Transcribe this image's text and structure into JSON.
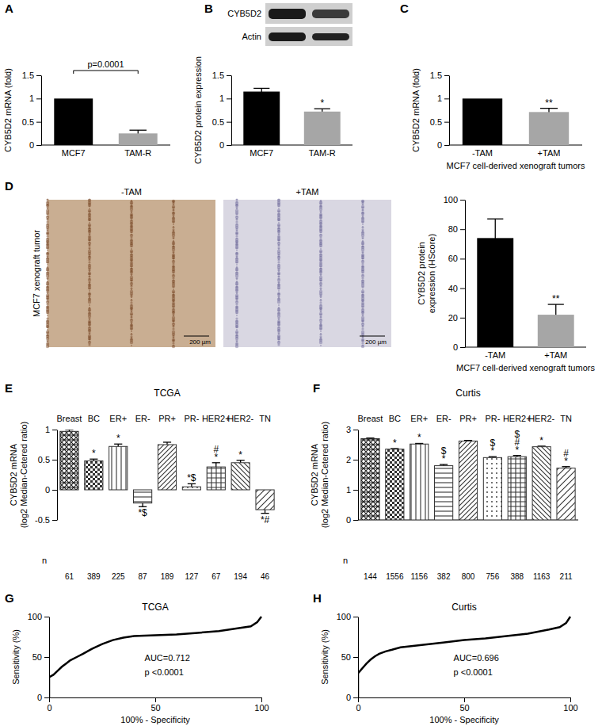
{
  "chart_data": [
    {
      "panel": "A",
      "type": "bar",
      "categories": [
        "MCF7",
        "TAM-R"
      ],
      "values": [
        1,
        0.25
      ],
      "errors": [
        null,
        0.07
      ],
      "colors": [
        "#000000",
        "#a6a6a6"
      ],
      "ylabel": [
        "CYB5D2 mRNA (fold)"
      ],
      "ylim": [
        0,
        1.5
      ],
      "yticks": [
        0,
        0.5,
        1,
        1.5
      ],
      "annotations": [
        {
          "text": "p=0.0001",
          "from": "MCF7",
          "to": "TAM-R"
        }
      ]
    },
    {
      "panel": "B",
      "type": "bar",
      "categories": [
        "MCF7",
        "TAM-R"
      ],
      "values": [
        1.15,
        0.72
      ],
      "errors": [
        0.07,
        0.06
      ],
      "colors": [
        "#000000",
        "#a6a6a6"
      ],
      "ylabel": [
        "CYB5D2 protein expression"
      ],
      "ylim": [
        0,
        1.5
      ],
      "yticks": [
        0,
        0.5,
        1,
        1.5
      ],
      "annotations": [
        {
          "category": "TAM-R",
          "lines": [
            "*"
          ]
        }
      ],
      "blot_labels": [
        "CYB5D2",
        "Actin"
      ]
    },
    {
      "panel": "C",
      "type": "bar",
      "categories": [
        "-TAM",
        "+TAM"
      ],
      "values": [
        1,
        0.71
      ],
      "errors": [
        null,
        0.08
      ],
      "colors": [
        "#000000",
        "#a6a6a6"
      ],
      "ylabel": [
        "CYB5D2 mRNA (fold)"
      ],
      "xlabel": "MCF7 cell-derived xenograft tumors",
      "ylim": [
        0,
        1.5
      ],
      "yticks": [
        0,
        0.5,
        1,
        1.5
      ],
      "annotations": [
        {
          "category": "+TAM",
          "lines": [
            "**"
          ]
        }
      ]
    },
    {
      "panel": "D",
      "type": "bar",
      "categories": [
        "-TAM",
        "+TAM"
      ],
      "values": [
        74,
        22
      ],
      "errors": [
        13,
        7
      ],
      "colors": [
        "#000000",
        "#a6a6a6"
      ],
      "ylabel": [
        "CYB5D2 protein",
        "expression (HScore)"
      ],
      "xlabel": "MCF7 cell-derived xenograft tumors",
      "ylim": [
        0,
        100
      ],
      "yticks": [
        0,
        20,
        40,
        60,
        80,
        100
      ],
      "annotations": [
        {
          "category": "+TAM",
          "lines": [
            "**"
          ]
        }
      ],
      "images": {
        "titles": [
          "-TAM",
          "+TAM"
        ],
        "side_label": "MCF7 xenograft tumor",
        "scale_bars": [
          "200 µm",
          "200 µm"
        ]
      }
    },
    {
      "panel": "E",
      "type": "bar",
      "title": "TCGA",
      "categories": [
        "Breast",
        "BC",
        "ER+",
        "ER-",
        "PR+",
        "PR-",
        "HER2+",
        "HER2-",
        "TN"
      ],
      "values": [
        0.97,
        0.48,
        0.72,
        -0.22,
        0.75,
        0.05,
        0.38,
        0.45,
        -0.33
      ],
      "errors": [
        0.03,
        0.03,
        0.04,
        0.06,
        0.04,
        0.05,
        0.07,
        0.04,
        0.06
      ],
      "colors": [
        "#222222",
        "#333333",
        "#333333",
        "#333333",
        "#333333",
        "#333333",
        "#333333",
        "#333333",
        "#333333"
      ],
      "ylabel": [
        "CYB5D2 mRNA",
        "(log2 Median-Cetered ratio)"
      ],
      "ylim": [
        -0.5,
        1
      ],
      "yticks": [
        -0.5,
        0,
        0.5,
        1
      ],
      "annotations": [
        {
          "category": "BC",
          "lines": [
            "*"
          ]
        },
        {
          "category": "ER+",
          "lines": [
            "*"
          ]
        },
        {
          "category": "ER-",
          "lines": [
            "*$"
          ]
        },
        {
          "category": "PR-",
          "lines": [
            "*$"
          ]
        },
        {
          "category": "HER2+",
          "lines": [
            "#",
            "*"
          ]
        },
        {
          "category": "HER2-",
          "lines": [
            "*"
          ]
        },
        {
          "category": "TN",
          "lines": [
            "*#"
          ]
        }
      ],
      "n": {
        "label": "n",
        "values": [
          61,
          389,
          225,
          87,
          189,
          127,
          67,
          194,
          46
        ]
      }
    },
    {
      "panel": "F",
      "type": "bar",
      "title": "Curtis",
      "categories": [
        "Breast",
        "BC",
        "ER+",
        "ER-",
        "PR+",
        "PR-",
        "HER2+",
        "HER2-",
        "TN"
      ],
      "values": [
        2.7,
        2.35,
        2.52,
        1.8,
        2.62,
        2.07,
        2.1,
        2.43,
        1.72
      ],
      "errors": [
        0.02,
        0.02,
        0.02,
        0.04,
        0.02,
        0.03,
        0.04,
        0.02,
        0.05
      ],
      "colors": [
        "#222222",
        "#333333",
        "#333333",
        "#333333",
        "#333333",
        "#333333",
        "#333333",
        "#333333",
        "#333333"
      ],
      "ylabel": [
        "CYB5D2 mRNA",
        "(log2 Median-Cetered ratio)"
      ],
      "ylim": [
        0,
        3
      ],
      "yticks": [
        0,
        1,
        2,
        3
      ],
      "annotations": [
        {
          "category": "BC",
          "lines": [
            "*"
          ]
        },
        {
          "category": "ER+",
          "lines": [
            "*"
          ]
        },
        {
          "category": "ER-",
          "lines": [
            "$",
            "*"
          ]
        },
        {
          "category": "PR-",
          "lines": [
            "$",
            "*"
          ]
        },
        {
          "category": "HER2+",
          "lines": [
            "$",
            "#",
            "*"
          ]
        },
        {
          "category": "HER2-",
          "lines": [
            "*"
          ]
        },
        {
          "category": "TN",
          "lines": [
            "#",
            "*"
          ]
        }
      ],
      "n": {
        "label": "n",
        "values": [
          144,
          1556,
          1156,
          382,
          800,
          756,
          388,
          1163,
          211
        ]
      }
    },
    {
      "panel": "G",
      "type": "line",
      "title": "TCGA",
      "x": [
        0,
        0,
        2,
        4,
        6,
        8,
        10,
        13,
        16,
        20,
        25,
        30,
        35,
        40,
        50,
        60,
        70,
        80,
        90,
        95,
        98,
        100
      ],
      "y": [
        0,
        25,
        28,
        33,
        38,
        42,
        46,
        50,
        54,
        60,
        66,
        71,
        74,
        76,
        77,
        78,
        80,
        82,
        86,
        88,
        93,
        100
      ],
      "color": "#000000",
      "xlabel": "100% - Specificity",
      "ylabel": [
        "Sensitivity (%)"
      ],
      "xlim": [
        0,
        100
      ],
      "ylim": [
        0,
        100
      ],
      "xticks": [
        0,
        50,
        100
      ],
      "yticks": [
        0,
        50,
        100
      ],
      "annotations": [
        {
          "text": "AUC=0.712"
        },
        {
          "text": "p <0.0001"
        }
      ]
    },
    {
      "panel": "H",
      "type": "line",
      "title": "Curtis",
      "x": [
        0,
        0,
        1,
        2,
        4,
        6,
        8,
        10,
        13,
        16,
        20,
        30,
        40,
        50,
        60,
        70,
        80,
        90,
        95,
        98,
        100
      ],
      "y": [
        0,
        30,
        33,
        36,
        42,
        47,
        51,
        54,
        57,
        59,
        62,
        65,
        68,
        71,
        73,
        76,
        79,
        84,
        87,
        92,
        100
      ],
      "color": "#000000",
      "xlabel": "100% - Specificity",
      "ylabel": [
        "Sensitivity (%)"
      ],
      "xlim": [
        0,
        100
      ],
      "ylim": [
        0,
        100
      ],
      "xticks": [
        0,
        50,
        100
      ],
      "yticks": [
        0,
        50,
        100
      ],
      "annotations": [
        {
          "text": "AUC=0.696"
        },
        {
          "text": "p <0.0001"
        }
      ]
    }
  ]
}
